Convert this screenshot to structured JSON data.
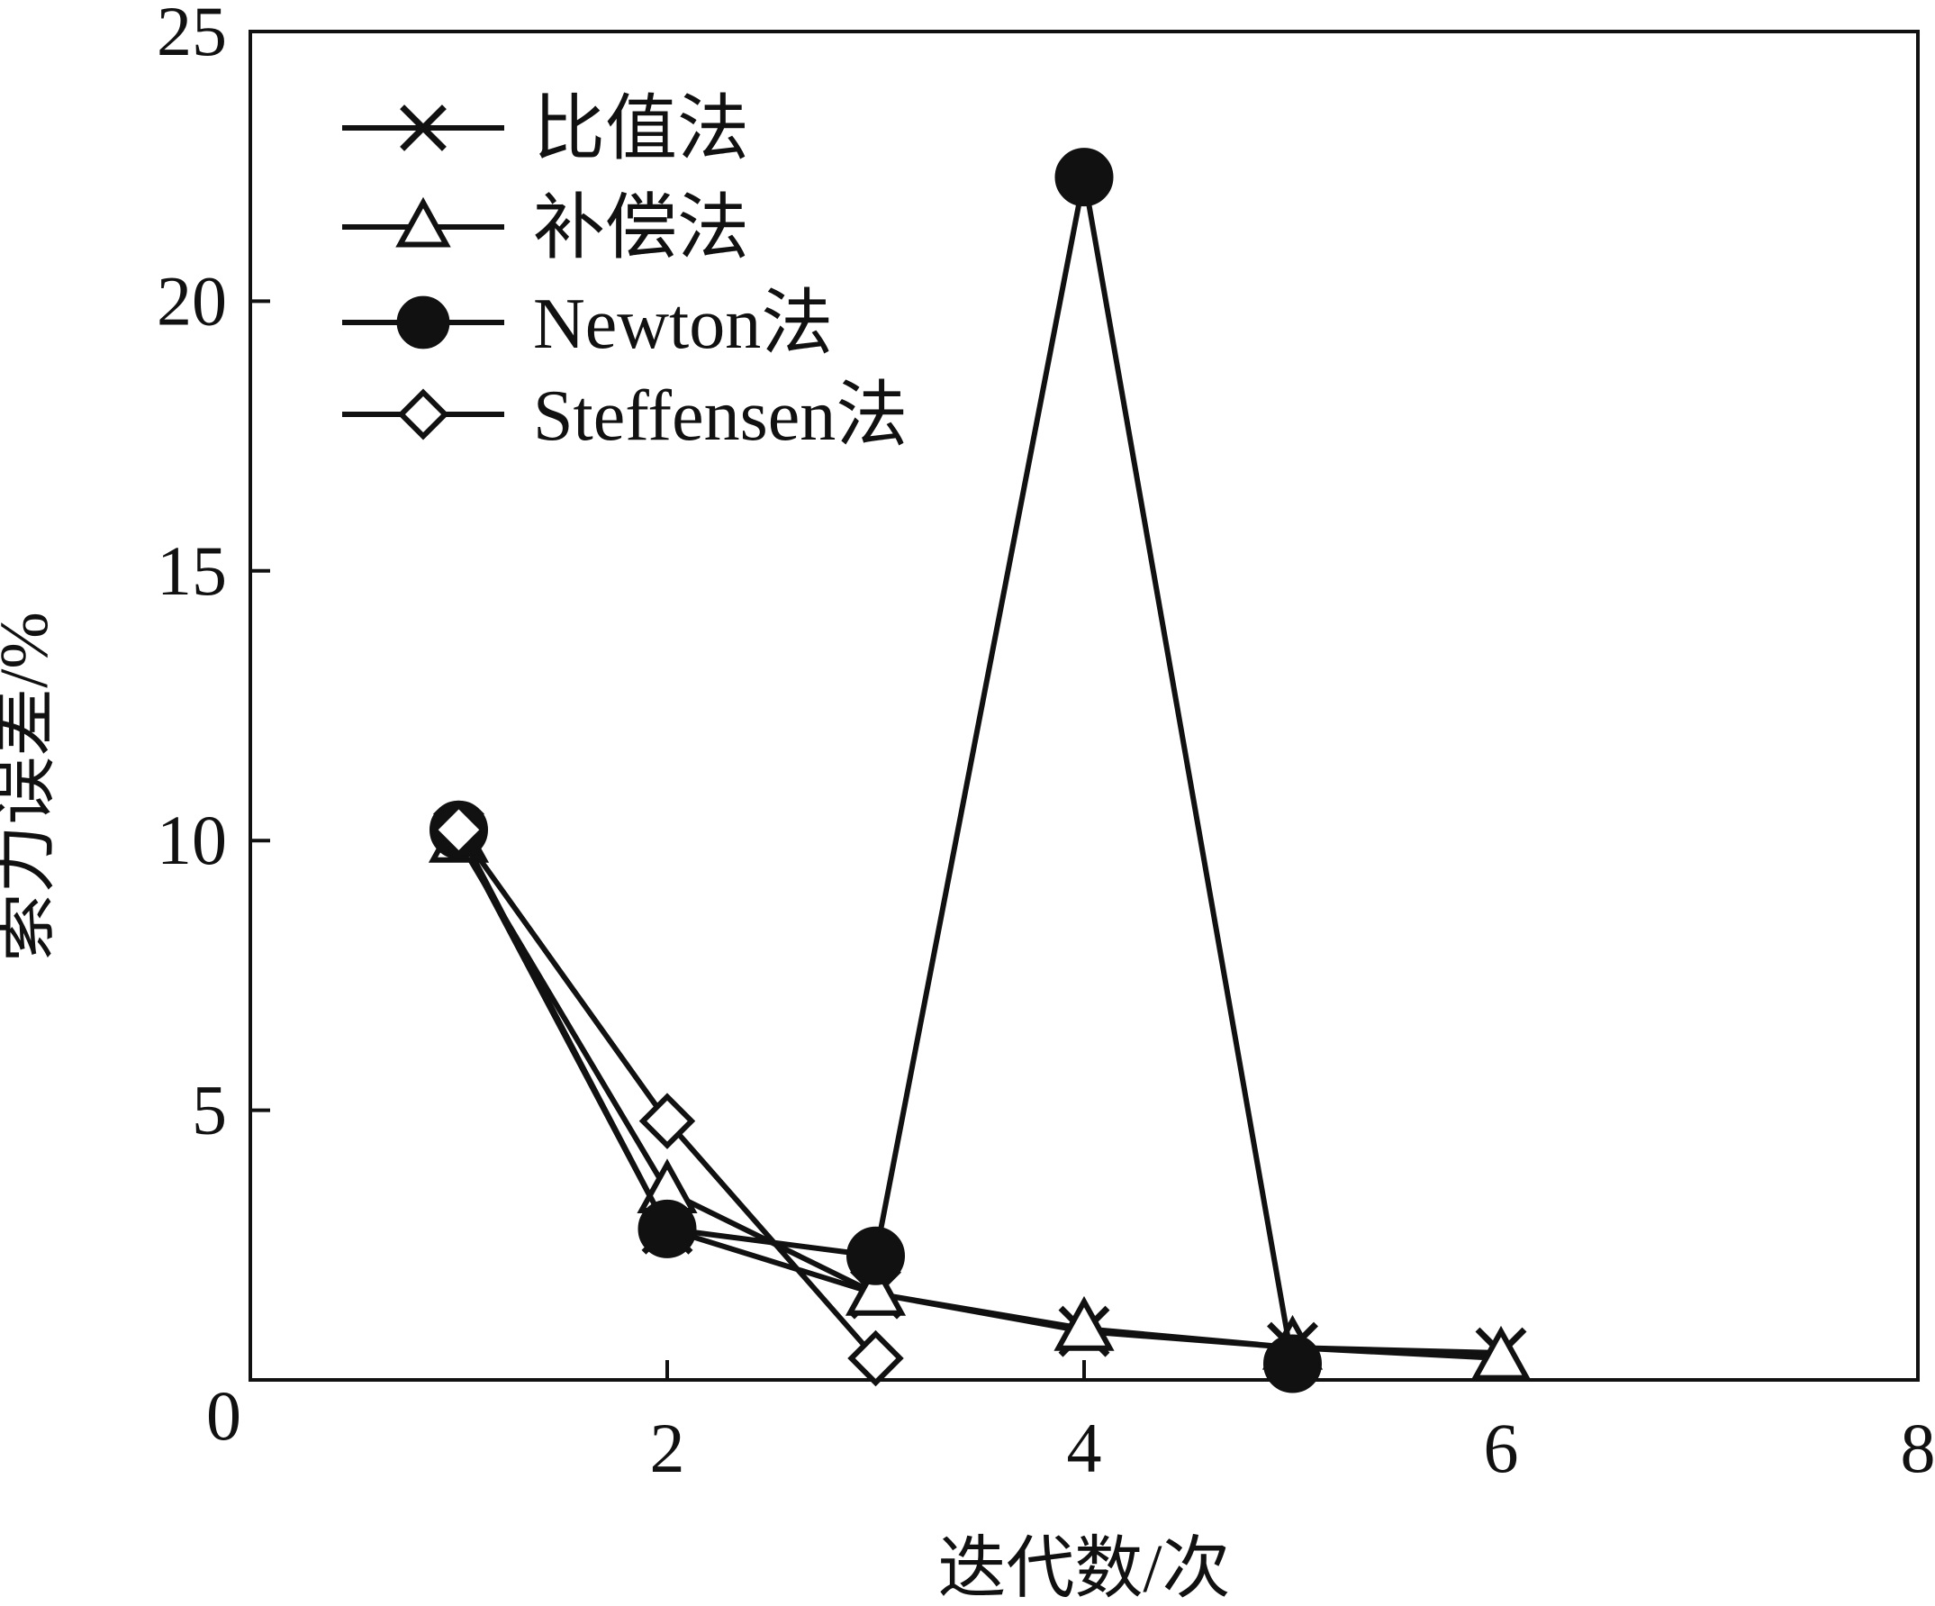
{
  "chart_data": {
    "type": "line",
    "title": "",
    "xlabel": "迭代数/次",
    "ylabel": "索力误差/%",
    "xlim": [
      0,
      8
    ],
    "ylim": [
      0,
      25
    ],
    "xticks": [
      2,
      4,
      6,
      8
    ],
    "yticks": [
      0,
      5,
      10,
      15,
      20,
      25
    ],
    "origin_label": "0",
    "grid": false,
    "legend_position": "top-left",
    "series": [
      {
        "name": "比值法",
        "marker": "x",
        "x": [
          1,
          2,
          3,
          4,
          5,
          6
        ],
        "y": [
          10.1,
          2.8,
          1.6,
          0.9,
          0.6,
          0.5
        ]
      },
      {
        "name": "补偿法",
        "marker": "triangle",
        "x": [
          1,
          2,
          3,
          4,
          5,
          6
        ],
        "y": [
          10.0,
          3.5,
          1.6,
          0.95,
          0.6,
          0.4
        ]
      },
      {
        "name": "Newton法",
        "marker": "circle-filled",
        "x": [
          1,
          2,
          3,
          4,
          5
        ],
        "y": [
          10.2,
          2.8,
          2.3,
          22.3,
          0.3
        ]
      },
      {
        "name": "Steffensen法",
        "marker": "diamond",
        "x": [
          1,
          2,
          3
        ],
        "y": [
          10.2,
          4.8,
          0.4
        ]
      }
    ]
  }
}
